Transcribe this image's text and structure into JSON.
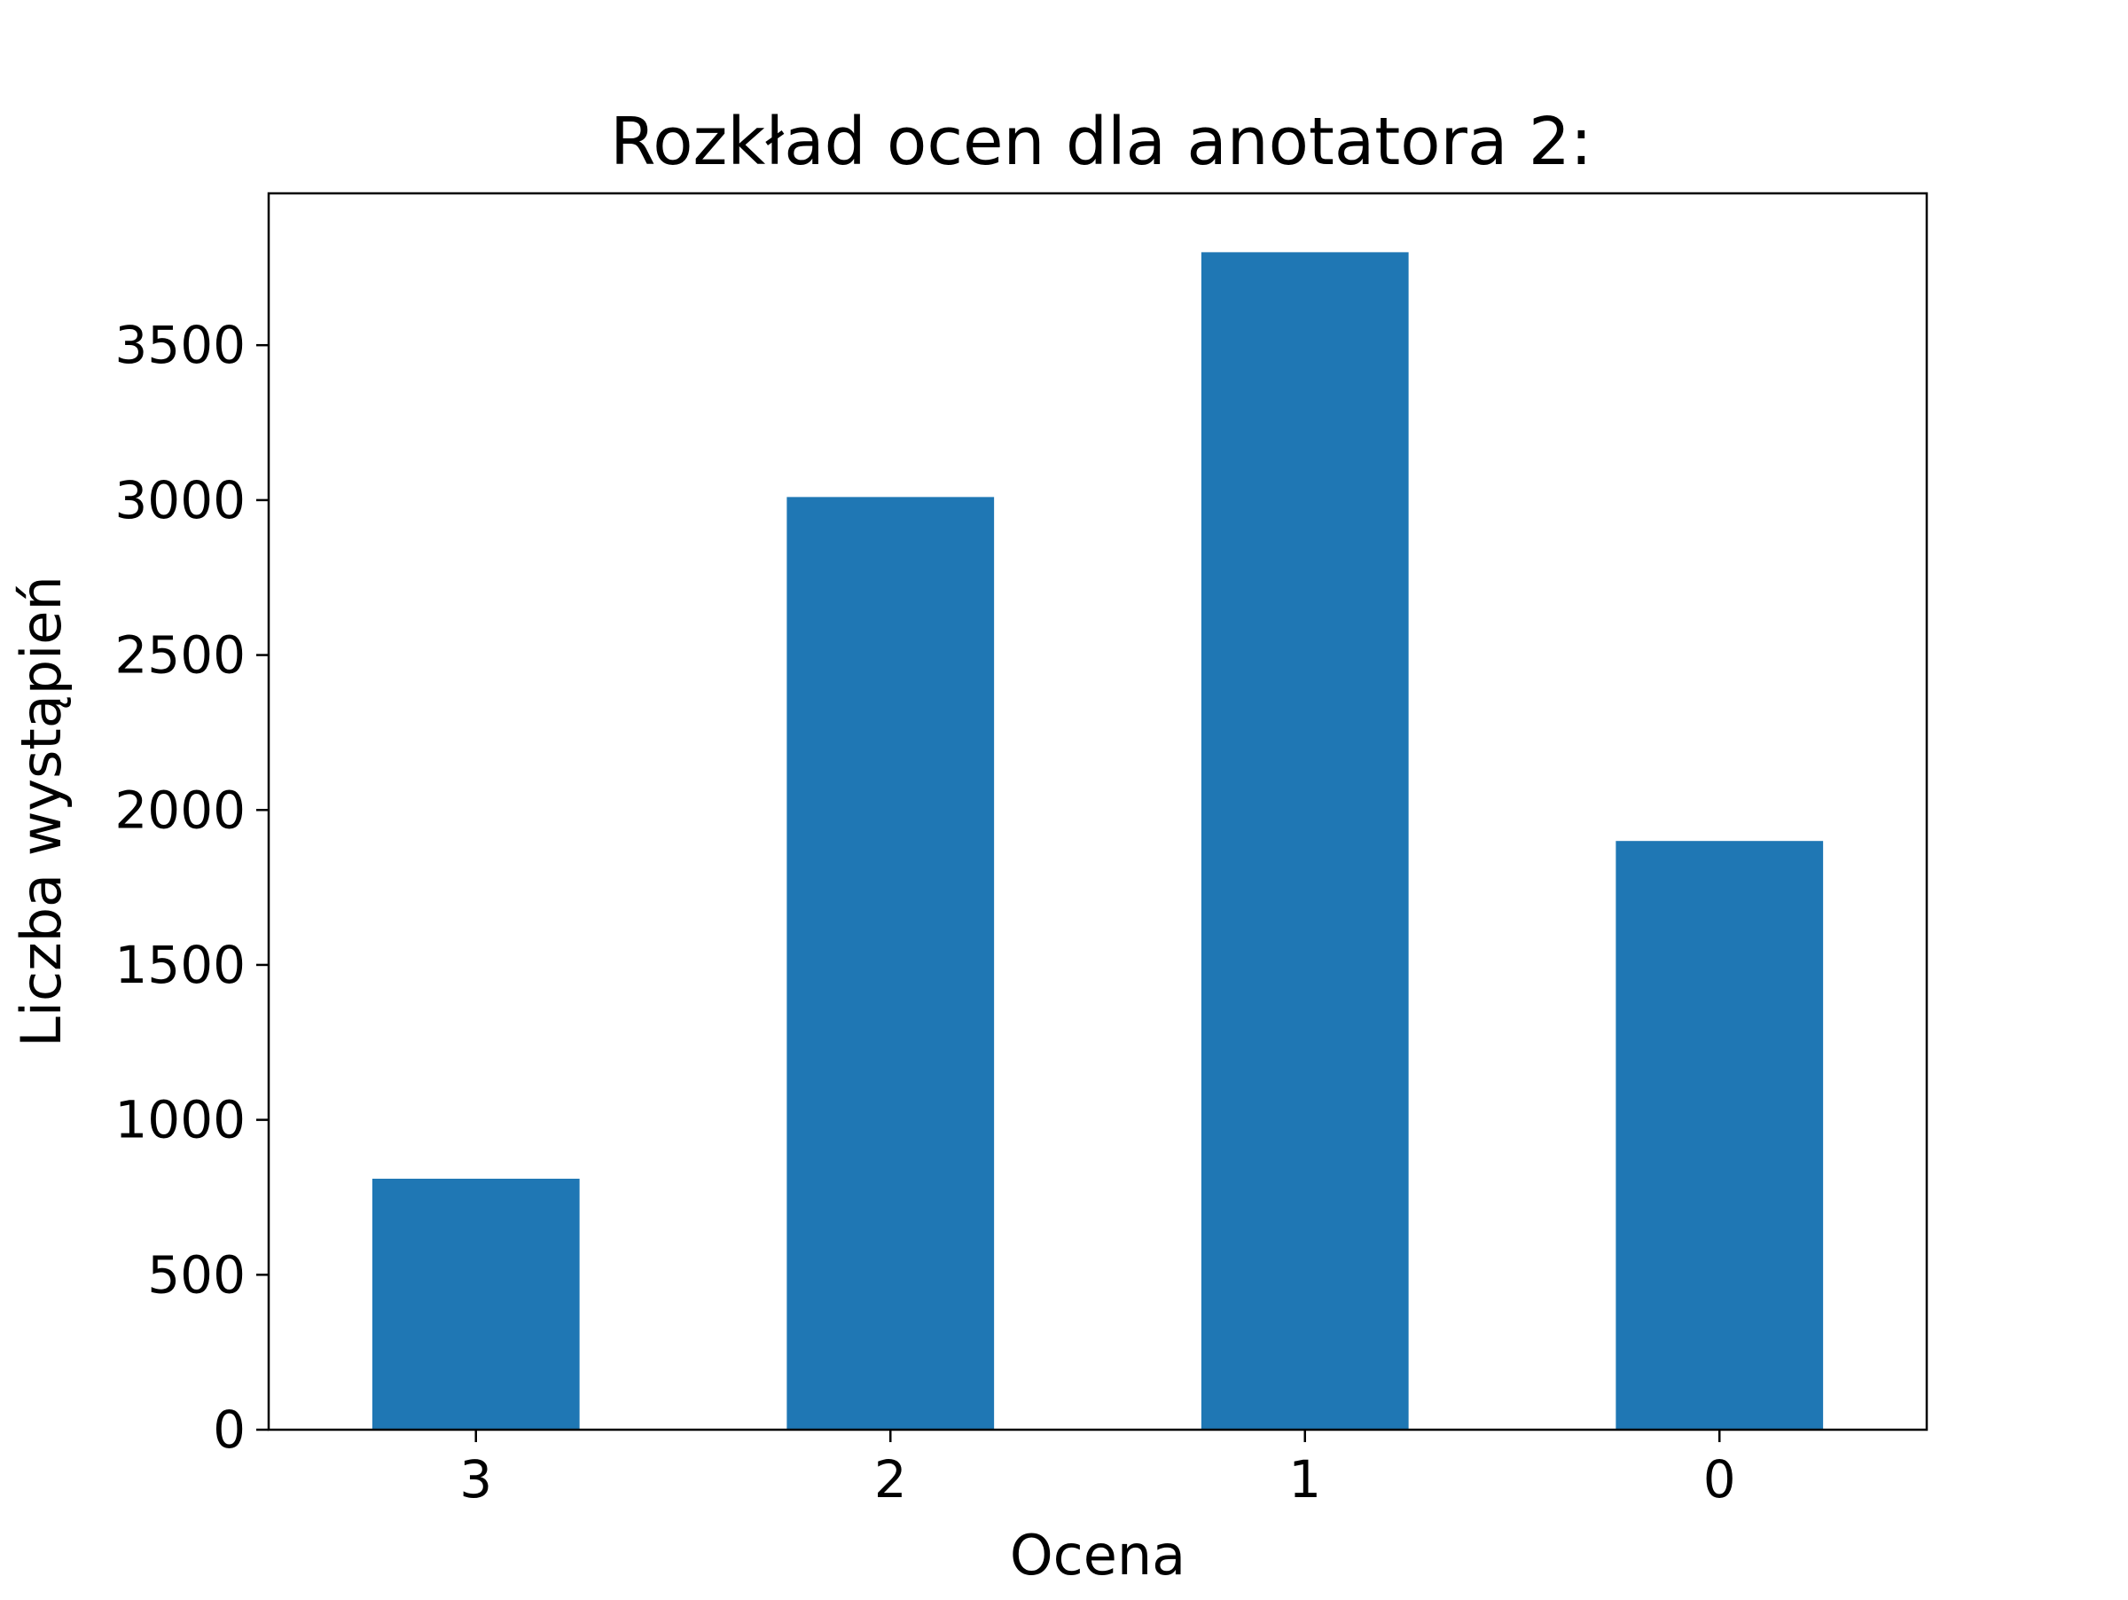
{
  "chart_data": {
    "type": "bar",
    "title": "Rozkład ocen dla anotatora 2:",
    "xlabel": "Ocena",
    "ylabel": "Liczba wystąpień",
    "categories": [
      "3",
      "2",
      "1",
      "0"
    ],
    "values": [
      810,
      3010,
      3800,
      1900
    ],
    "ylim": [
      0,
      3990
    ],
    "yticks": [
      0,
      500,
      1000,
      1500,
      2000,
      2500,
      3000,
      3500
    ],
    "bar_color": "#1f77b4",
    "grid": false,
    "legend": "none"
  }
}
